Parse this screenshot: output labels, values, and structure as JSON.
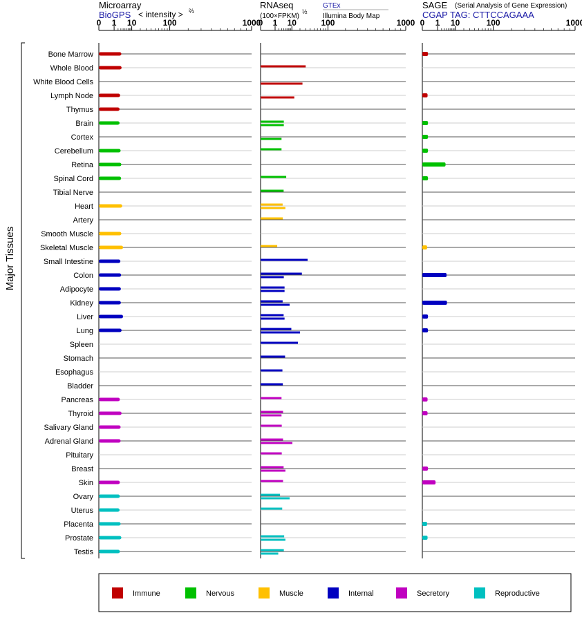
{
  "side_label": "Major Tissues",
  "panels": [
    {
      "title": "Microarray",
      "subtitle": "BioGPS",
      "subtitle_color": "#1a1aa6",
      "unit": "< intensity >",
      "unit_power": "⅔",
      "ticks": [
        "0",
        "1",
        "10",
        "100",
        "1000"
      ],
      "extra": ""
    },
    {
      "title": "RNAseq",
      "subtitle": "(100×FPKM)",
      "subtitle_color": "#000000",
      "unit": "",
      "unit_power": "½",
      "ticks": [
        "0",
        "1",
        "10",
        "100",
        "1000"
      ],
      "extra_top": "GTEx",
      "extra_bottom": "Illumina Body Map"
    },
    {
      "title": "SAGE",
      "title_note": "(Serial Analysis of Gene Expression)",
      "subtitle": "CGAP  TAG: CTTCCAGAAA",
      "subtitle_color": "#1a1aa6",
      "unit": "",
      "unit_power": "",
      "ticks": [
        "0",
        "1",
        "10",
        "100",
        "1000"
      ],
      "extra": ""
    }
  ],
  "legend": [
    {
      "label": "Immune",
      "color": "#c00000"
    },
    {
      "label": "Nervous",
      "color": "#00c000"
    },
    {
      "label": "Muscle",
      "color": "#ffc000"
    },
    {
      "label": "Internal",
      "color": "#0000c0"
    },
    {
      "label": "Secretory",
      "color": "#c000c0"
    },
    {
      "label": "Reproductive",
      "color": "#00c0c0"
    }
  ],
  "chart_data": {
    "type": "bar",
    "orientation": "horizontal",
    "x_scale": "power (displayed ticks 0, 1, 10, 100, 1000)",
    "categories": [
      "Bone Marrow",
      "Whole Blood",
      "White Blood Cells",
      "Lymph Node",
      "Thymus",
      "Brain",
      "Cortex",
      "Cerebellum",
      "Retina",
      "Spinal Cord",
      "Tibial Nerve",
      "Heart",
      "Artery",
      "Smooth Muscle",
      "Skeletal Muscle",
      "Small Intestine",
      "Colon",
      "Adipocyte",
      "Kidney",
      "Liver",
      "Lung",
      "Spleen",
      "Stomach",
      "Esophagus",
      "Bladder",
      "Pancreas",
      "Thyroid",
      "Salivary Gland",
      "Adrenal Gland",
      "Pituitary",
      "Breast",
      "Skin",
      "Ovary",
      "Uterus",
      "Placenta",
      "Prostate",
      "Testis"
    ],
    "groups": [
      "Immune",
      "Immune",
      "Immune",
      "Immune",
      "Immune",
      "Nervous",
      "Nervous",
      "Nervous",
      "Nervous",
      "Nervous",
      "Nervous",
      "Muscle",
      "Muscle",
      "Muscle",
      "Muscle",
      "Internal",
      "Internal",
      "Internal",
      "Internal",
      "Internal",
      "Internal",
      "Internal",
      "Internal",
      "Internal",
      "Internal",
      "Secretory",
      "Secretory",
      "Secretory",
      "Secretory",
      "Secretory",
      "Secretory",
      "Secretory",
      "Reproductive",
      "Reproductive",
      "Reproductive",
      "Reproductive",
      "Reproductive"
    ],
    "microarray_biogps": [
      3.2,
      3.3,
      null,
      2.7,
      2.5,
      2.5,
      null,
      2.9,
      3.2,
      3.1,
      null,
      3.6,
      null,
      3.2,
      4.0,
      2.8,
      3.1,
      3.0,
      3.0,
      4.0,
      3.3,
      null,
      null,
      null,
      null,
      2.6,
      3.3,
      2.9,
      2.9,
      null,
      null,
      2.6,
      2.6,
      2.5,
      2.9,
      3.2,
      2.6
    ],
    "rnaseq_gtex": [
      null,
      30,
      null,
      null,
      null,
      4.1,
      null,
      3.0,
      null,
      5.5,
      4.0,
      3.5,
      3.6,
      null,
      1.5,
      34,
      23,
      4.5,
      3.5,
      4.0,
      9.5,
      17,
      4.8,
      3.4,
      3.6,
      3.0,
      3.7,
      3.1,
      3.7,
      3.1,
      4.0,
      3.7,
      2.4,
      3.3,
      null,
      4.3,
      4.1
    ],
    "rnaseq_illumina": [
      null,
      null,
      24,
      12.5,
      null,
      4.1,
      3.0,
      null,
      null,
      null,
      null,
      5.0,
      null,
      null,
      null,
      null,
      4.1,
      4.5,
      8.0,
      4.5,
      20,
      null,
      null,
      null,
      null,
      null,
      3.0,
      null,
      10.5,
      null,
      5.0,
      null,
      8.0,
      null,
      null,
      5.0,
      1.8
    ],
    "sage_cgap": [
      0.05,
      null,
      null,
      0.04,
      null,
      0.05,
      0.05,
      0.05,
      3.5,
      0.05,
      null,
      null,
      null,
      null,
      0.03,
      null,
      4.0,
      null,
      4.2,
      0.05,
      0.05,
      null,
      null,
      null,
      null,
      0.04,
      0.04,
      null,
      null,
      null,
      0.05,
      0.65,
      null,
      null,
      0.03,
      0.04,
      null
    ],
    "xlim": [
      0,
      1000
    ]
  }
}
